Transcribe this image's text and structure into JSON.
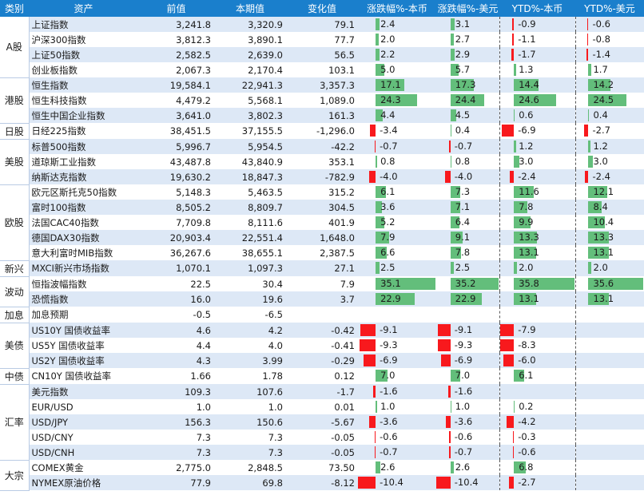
{
  "headers": [
    "类别",
    "资产",
    "前值",
    "本期值",
    "变化值",
    "涨跌幅%-本币",
    "涨跌幅%-美元",
    "YTD%-本币",
    "YTD%-美元"
  ],
  "colors": {
    "header": "#1a7fcc",
    "positive": "#63be7b",
    "negative": "#f8191d",
    "stripe": "#dde8f6"
  },
  "scales": [
    {
      "col": 5,
      "min": -10.4,
      "max": 35.2
    },
    {
      "col": 6,
      "min": -10.4,
      "max": 35.2
    },
    {
      "col": 7,
      "min": -8.3,
      "max": 35.8
    },
    {
      "col": 8,
      "min": -8.3,
      "max": 35.8
    }
  ],
  "groups": [
    {
      "category": "A股",
      "rows": [
        {
          "asset": "上证指数",
          "prev": "3,241.8",
          "curr": "3,320.9",
          "change": "79.1",
          "pct_local": 2.4,
          "pct_usd": 3.1,
          "ytd_local": -0.9,
          "ytd_usd": -0.6
        },
        {
          "asset": "沪深300指数",
          "prev": "3,812.3",
          "curr": "3,890.1",
          "change": "77.7",
          "pct_local": 2.0,
          "pct_usd": 2.7,
          "ytd_local": -1.1,
          "ytd_usd": -0.8
        },
        {
          "asset": "上证50指数",
          "prev": "2,582.5",
          "curr": "2,639.0",
          "change": "56.5",
          "pct_local": 2.2,
          "pct_usd": 2.9,
          "ytd_local": -1.7,
          "ytd_usd": -1.4
        },
        {
          "asset": "创业板指数",
          "prev": "2,067.3",
          "curr": "2,170.4",
          "change": "103.1",
          "pct_local": 5.0,
          "pct_usd": 5.7,
          "ytd_local": 1.3,
          "ytd_usd": 1.7
        }
      ]
    },
    {
      "category": "港股",
      "rows": [
        {
          "asset": "恒生指数",
          "prev": "19,584.1",
          "curr": "22,941.3",
          "change": "3,357.3",
          "pct_local": 17.1,
          "pct_usd": 17.3,
          "ytd_local": 14.4,
          "ytd_usd": 14.2
        },
        {
          "asset": "恒生科技指数",
          "prev": "4,479.2",
          "curr": "5,568.1",
          "change": "1,089.0",
          "pct_local": 24.3,
          "pct_usd": 24.4,
          "ytd_local": 24.6,
          "ytd_usd": 24.5
        },
        {
          "asset": "恒生中国企业指数",
          "prev": "3,641.0",
          "curr": "3,802.3",
          "change": "161.3",
          "pct_local": 4.4,
          "pct_usd": 4.5,
          "ytd_local": 0.6,
          "ytd_usd": 0.4
        }
      ]
    },
    {
      "category": "日股",
      "rows": [
        {
          "asset": "日经225指数",
          "prev": "38,451.5",
          "curr": "37,155.5",
          "change": "-1,296.0",
          "pct_local": -3.4,
          "pct_usd": 0.4,
          "ytd_local": -6.9,
          "ytd_usd": -2.7
        }
      ]
    },
    {
      "category": "美股",
      "rows": [
        {
          "asset": "标普500指数",
          "prev": "5,996.7",
          "curr": "5,954.5",
          "change": "-42.2",
          "pct_local": -0.7,
          "pct_usd": -0.7,
          "ytd_local": 1.2,
          "ytd_usd": 1.2
        },
        {
          "asset": "道琼斯工业指数",
          "prev": "43,487.8",
          "curr": "43,840.9",
          "change": "353.1",
          "pct_local": 0.8,
          "pct_usd": 0.8,
          "ytd_local": 3.0,
          "ytd_usd": 3.0
        },
        {
          "asset": "纳斯达克指数",
          "prev": "19,630.2",
          "curr": "18,847.3",
          "change": "-782.9",
          "pct_local": -4.0,
          "pct_usd": -4.0,
          "ytd_local": -2.4,
          "ytd_usd": -2.4
        }
      ]
    },
    {
      "category": "欧股",
      "rows": [
        {
          "asset": "欧元区斯托克50指数",
          "prev": "5,148.3",
          "curr": "5,463.5",
          "change": "315.2",
          "pct_local": 6.1,
          "pct_usd": 7.3,
          "ytd_local": 11.6,
          "ytd_usd": 12.1
        },
        {
          "asset": "富时100指数",
          "prev": "8,505.2",
          "curr": "8,809.7",
          "change": "304.5",
          "pct_local": 3.6,
          "pct_usd": 7.1,
          "ytd_local": 7.8,
          "ytd_usd": 8.4
        },
        {
          "asset": "法国CAC40指数",
          "prev": "7,709.8",
          "curr": "8,111.6",
          "change": "401.9",
          "pct_local": 5.2,
          "pct_usd": 6.4,
          "ytd_local": 9.9,
          "ytd_usd": 10.4
        },
        {
          "asset": "德国DAX30指数",
          "prev": "20,903.4",
          "curr": "22,551.4",
          "change": "1,648.0",
          "pct_local": 7.9,
          "pct_usd": 9.1,
          "ytd_local": 13.3,
          "ytd_usd": 13.3
        },
        {
          "asset": "意大利富时MIB指数",
          "prev": "36,267.6",
          "curr": "38,655.1",
          "change": "2,387.5",
          "pct_local": 6.6,
          "pct_usd": 7.8,
          "ytd_local": 13.1,
          "ytd_usd": 13.1
        }
      ]
    },
    {
      "category": "新兴",
      "rows": [
        {
          "asset": "MXCI新兴市场指数",
          "prev": "1,070.1",
          "curr": "1,097.3",
          "change": "27.1",
          "pct_local": 2.5,
          "pct_usd": 2.5,
          "ytd_local": 2.0,
          "ytd_usd": 2.0
        }
      ]
    },
    {
      "category": "波动",
      "rows": [
        {
          "asset": "恒指波幅指数",
          "prev": "22.5",
          "curr": "30.4",
          "change": "7.9",
          "pct_local": 35.1,
          "pct_usd": 35.2,
          "ytd_local": 35.8,
          "ytd_usd": 35.6
        },
        {
          "asset": "恐慌指数",
          "prev": "16.0",
          "curr": "19.6",
          "change": "3.7",
          "pct_local": 22.9,
          "pct_usd": 22.9,
          "ytd_local": 13.1,
          "ytd_usd": 13.1
        }
      ]
    },
    {
      "category": "加息",
      "rows": [
        {
          "asset": "加息预期",
          "prev": "-0.5",
          "curr": "-6.5",
          "change": "",
          "pct_local": null,
          "pct_usd": null,
          "ytd_local": null,
          "ytd_usd": null
        }
      ]
    },
    {
      "category": "美债",
      "rows": [
        {
          "asset": "US10Y 国债收益率",
          "prev": "4.6",
          "curr": "4.2",
          "change": "-0.42",
          "pct_local": -9.1,
          "pct_usd": -9.1,
          "ytd_local": -7.9,
          "ytd_usd": null
        },
        {
          "asset": "US5Y 国债收益率",
          "prev": "4.4",
          "curr": "4.0",
          "change": "-0.41",
          "pct_local": -9.3,
          "pct_usd": -9.3,
          "ytd_local": -8.3,
          "ytd_usd": null
        },
        {
          "asset": "US2Y 国债收益率",
          "prev": "4.3",
          "curr": "3.99",
          "change": "-0.29",
          "pct_local": -6.9,
          "pct_usd": -6.9,
          "ytd_local": -6.0,
          "ytd_usd": null
        }
      ]
    },
    {
      "category": "中债",
      "rows": [
        {
          "asset": "CN10Y 国债收益率",
          "prev": "1.66",
          "curr": "1.78",
          "change": "0.12",
          "pct_local": 7.0,
          "pct_usd": 7.0,
          "ytd_local": 6.1,
          "ytd_usd": null
        }
      ]
    },
    {
      "category": "汇率",
      "rows": [
        {
          "asset": "美元指数",
          "prev": "109.3",
          "curr": "107.6",
          "change": "-1.7",
          "pct_local": -1.6,
          "pct_usd": -1.6,
          "ytd_local": null,
          "ytd_usd": null
        },
        {
          "asset": "EUR/USD",
          "prev": "1.0",
          "curr": "1.0",
          "change": "0.01",
          "pct_local": 1.0,
          "pct_usd": 1.0,
          "ytd_local": 0.2,
          "ytd_usd": null
        },
        {
          "asset": "USD/JPY",
          "prev": "156.3",
          "curr": "150.6",
          "change": "-5.67",
          "pct_local": -3.6,
          "pct_usd": -3.6,
          "ytd_local": -4.2,
          "ytd_usd": null
        },
        {
          "asset": "USD/CNY",
          "prev": "7.3",
          "curr": "7.3",
          "change": "-0.05",
          "pct_local": -0.6,
          "pct_usd": -0.6,
          "ytd_local": -0.3,
          "ytd_usd": null
        },
        {
          "asset": "USD/CNH",
          "prev": "7.3",
          "curr": "7.3",
          "change": "-0.05",
          "pct_local": -0.7,
          "pct_usd": -0.7,
          "ytd_local": -0.6,
          "ytd_usd": null
        }
      ]
    },
    {
      "category": "大宗",
      "rows": [
        {
          "asset": "COMEX黄金",
          "prev": "2,775.0",
          "curr": "2,848.5",
          "change": "73.50",
          "pct_local": 2.6,
          "pct_usd": 2.6,
          "ytd_local": 6.8,
          "ytd_usd": null
        },
        {
          "asset": "NYMEX原油价格",
          "prev": "77.9",
          "curr": "69.8",
          "change": "-8.12",
          "pct_local": -10.4,
          "pct_usd": -10.4,
          "ytd_local": -2.7,
          "ytd_usd": null
        }
      ]
    }
  ]
}
